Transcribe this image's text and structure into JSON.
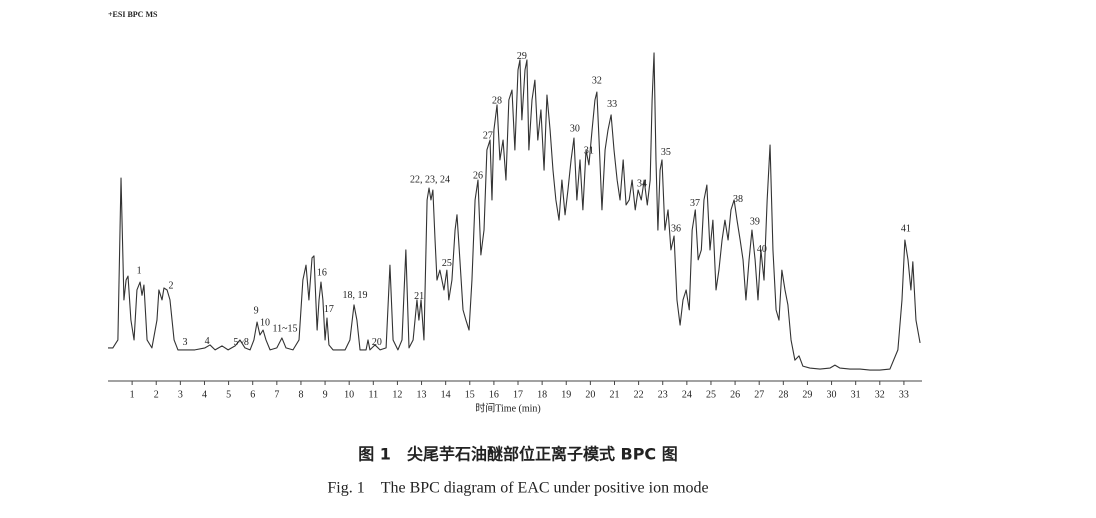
{
  "chart_data": {
    "type": "line",
    "label": "+ESI BPC MS",
    "xlabel": "时间Time (min)",
    "caption_cn": "图 1　尖尾芋石油醚部位正离子模式 BPC 图",
    "caption_en": "Fig. 1　The BPC diagram of EAC under positive ion mode",
    "xlim": [
      0,
      33.75
    ],
    "ylim": [
      0,
      100
    ],
    "xticks": [
      1,
      2,
      3,
      4,
      5,
      6,
      7,
      8,
      9,
      10,
      11,
      12,
      13,
      14,
      15,
      16,
      17,
      18,
      19,
      20,
      21,
      22,
      23,
      24,
      25,
      26,
      27,
      28,
      29,
      30,
      31,
      32,
      33
    ],
    "series": [
      {
        "color": "#333333",
        "x": [
          0,
          0.2,
          0.41,
          0.54,
          0.66,
          0.75,
          0.83,
          0.95,
          1.08,
          1.2,
          1.33,
          1.41,
          1.49,
          1.62,
          1.82,
          2.03,
          2.11,
          2.24,
          2.32,
          2.45,
          2.57,
          2.74,
          2.9,
          3.19,
          3.6,
          4.02,
          4.23,
          4.44,
          4.73,
          4.98,
          5.27,
          5.47,
          5.68,
          5.89,
          6.05,
          6.18,
          6.3,
          6.43,
          6.55,
          6.72,
          7.0,
          7.21,
          7.38,
          7.67,
          7.92,
          8.08,
          8.21,
          8.33,
          8.46,
          8.54,
          8.67,
          8.75,
          8.83,
          8.91,
          9.0,
          9.08,
          9.16,
          9.33,
          9.83,
          10.03,
          10.2,
          10.32,
          10.45,
          10.7,
          10.78,
          10.86,
          11.07,
          11.28,
          11.53,
          11.69,
          11.82,
          12.02,
          12.19,
          12.35,
          12.48,
          12.65,
          12.81,
          12.89,
          12.98,
          13.1,
          13.23,
          13.31,
          13.39,
          13.47,
          13.56,
          13.64,
          13.76,
          13.93,
          14.05,
          14.13,
          14.26,
          14.39,
          14.47,
          14.59,
          14.72,
          14.84,
          14.97,
          15.09,
          15.22,
          15.34,
          15.46,
          15.59,
          15.71,
          15.84,
          15.92,
          16.0,
          16.13,
          16.25,
          16.38,
          16.5,
          16.62,
          16.75,
          16.87,
          17.0,
          17.08,
          17.16,
          17.29,
          17.37,
          17.45,
          17.58,
          17.7,
          17.82,
          17.95,
          18.08,
          18.2,
          18.33,
          18.45,
          18.57,
          18.7,
          18.82,
          18.95,
          19.07,
          19.2,
          19.32,
          19.44,
          19.57,
          19.69,
          19.82,
          19.94,
          20.07,
          20.19,
          20.27,
          20.36,
          20.48,
          20.61,
          20.73,
          20.86,
          20.98,
          21.11,
          21.23,
          21.36,
          21.48,
          21.61,
          21.73,
          21.86,
          21.98,
          22.11,
          22.23,
          22.36,
          22.48,
          22.56,
          22.64,
          22.72,
          22.8,
          22.89,
          22.97,
          23.09,
          23.22,
          23.34,
          23.47,
          23.59,
          23.72,
          23.84,
          23.97,
          24.1,
          24.22,
          24.35,
          24.47,
          24.6,
          24.71,
          24.83,
          24.96,
          25.08,
          25.21,
          25.33,
          25.46,
          25.58,
          25.71,
          25.83,
          25.96,
          26.08,
          26.21,
          26.33,
          26.45,
          26.58,
          26.7,
          26.83,
          26.95,
          27.07,
          27.2,
          27.33,
          27.45,
          27.57,
          27.7,
          27.82,
          27.94,
          28.07,
          28.19,
          28.32,
          28.48,
          28.65,
          28.81,
          29.1,
          29.52,
          29.93,
          30.14,
          30.35,
          30.76,
          31.18,
          31.59,
          32.0,
          32.42,
          32.75,
          32.92,
          33.04,
          33.17,
          33.29,
          33.37,
          33.5,
          33.67
        ],
        "values": [
          10.0,
          10.0,
          12.4,
          61.3,
          24.5,
          30.5,
          31.7,
          18.4,
          12.4,
          27.5,
          29.9,
          25.9,
          29.0,
          12.4,
          10.0,
          18.4,
          27.5,
          24.5,
          28.1,
          27.5,
          24.5,
          12.4,
          9.4,
          9.4,
          9.4,
          10.0,
          10.9,
          9.4,
          10.6,
          9.4,
          10.6,
          12.4,
          10.0,
          9.4,
          12.4,
          17.8,
          13.9,
          15.4,
          12.4,
          9.4,
          10.0,
          13.0,
          10.0,
          9.4,
          12.4,
          30.5,
          35.0,
          24.5,
          37.2,
          37.8,
          15.4,
          24.5,
          29.9,
          24.5,
          12.4,
          19.0,
          10.9,
          9.4,
          9.4,
          12.4,
          23.0,
          18.4,
          9.4,
          9.4,
          12.4,
          9.4,
          10.9,
          9.4,
          10.0,
          35.0,
          12.4,
          9.4,
          12.4,
          39.6,
          10.0,
          12.4,
          24.5,
          18.4,
          24.5,
          12.4,
          54.7,
          58.3,
          54.7,
          57.7,
          42.6,
          30.5,
          33.5,
          27.5,
          33.5,
          24.5,
          30.5,
          45.6,
          50.2,
          36.6,
          21.5,
          18.4,
          15.4,
          30.5,
          54.7,
          60.7,
          38.1,
          45.6,
          69.8,
          72.8,
          54.7,
          75.8,
          83.4,
          66.8,
          72.8,
          60.7,
          84.9,
          87.9,
          69.8,
          94.0,
          97.0,
          78.9,
          94.0,
          97.0,
          69.8,
          84.9,
          90.9,
          72.8,
          81.9,
          63.7,
          86.4,
          75.8,
          63.7,
          54.7,
          48.6,
          60.7,
          50.2,
          57.7,
          66.8,
          73.4,
          54.7,
          66.8,
          51.7,
          69.8,
          65.3,
          75.8,
          84.9,
          87.3,
          72.8,
          51.7,
          69.8,
          75.8,
          80.4,
          69.8,
          60.7,
          54.7,
          66.8,
          53.2,
          54.7,
          60.7,
          51.7,
          57.7,
          54.7,
          60.7,
          53.2,
          60.7,
          84.9,
          99.1,
          66.8,
          45.6,
          63.7,
          66.8,
          45.6,
          51.7,
          39.6,
          43.8,
          24.5,
          16.9,
          24.5,
          27.5,
          21.5,
          45.6,
          51.7,
          36.6,
          39.6,
          54.7,
          59.2,
          39.6,
          48.6,
          27.5,
          33.5,
          42.6,
          48.6,
          42.6,
          51.7,
          54.7,
          48.6,
          42.6,
          36.6,
          24.5,
          36.6,
          45.6,
          36.6,
          24.5,
          39.6,
          30.5,
          54.7,
          71.3,
          39.6,
          21.5,
          18.4,
          33.5,
          27.5,
          23.0,
          12.4,
          6.3,
          7.6,
          4.5,
          3.9,
          3.6,
          3.9,
          4.8,
          3.9,
          3.6,
          3.6,
          3.3,
          3.3,
          3.6,
          9.4,
          24.5,
          42.6,
          36.6,
          27.5,
          36.0,
          18.4,
          11.5
        ]
      }
    ],
    "annotations": [
      {
        "text": "1",
        "x": 1.29,
        "y": 33.2
      },
      {
        "text": "2",
        "x": 2.61,
        "y": 28.7
      },
      {
        "text": "3",
        "x": 3.19,
        "y": 11.5
      },
      {
        "text": "4",
        "x": 4.11,
        "y": 11.8
      },
      {
        "text": "5~8",
        "x": 5.52,
        "y": 11.5
      },
      {
        "text": "9",
        "x": 6.14,
        "y": 21.1
      },
      {
        "text": "10",
        "x": 6.51,
        "y": 17.5
      },
      {
        "text": "11~15",
        "x": 7.34,
        "y": 15.7
      },
      {
        "text": "16",
        "x": 8.87,
        "y": 32.6
      },
      {
        "text": "17",
        "x": 9.16,
        "y": 21.5
      },
      {
        "text": "18, 19",
        "x": 10.24,
        "y": 25.7
      },
      {
        "text": "20",
        "x": 11.15,
        "y": 11.5
      },
      {
        "text": "21",
        "x": 12.9,
        "y": 25.4
      },
      {
        "text": "22, 23, 24",
        "x": 13.35,
        "y": 60.7
      },
      {
        "text": "25",
        "x": 14.05,
        "y": 35.4
      },
      {
        "text": "26",
        "x": 15.34,
        "y": 61.9
      },
      {
        "text": "27",
        "x": 15.75,
        "y": 74.0
      },
      {
        "text": "28",
        "x": 16.13,
        "y": 84.6
      },
      {
        "text": "29",
        "x": 17.16,
        "y": 97.9
      },
      {
        "text": "30",
        "x": 19.36,
        "y": 76.1
      },
      {
        "text": "31",
        "x": 19.94,
        "y": 69.5
      },
      {
        "text": "32",
        "x": 20.27,
        "y": 90.6
      },
      {
        "text": "33",
        "x": 20.9,
        "y": 83.4
      },
      {
        "text": "34",
        "x": 22.14,
        "y": 59.5
      },
      {
        "text": "35",
        "x": 23.13,
        "y": 68.9
      },
      {
        "text": "36",
        "x": 23.55,
        "y": 45.9
      },
      {
        "text": "37",
        "x": 24.34,
        "y": 53.5
      },
      {
        "text": "38",
        "x": 26.12,
        "y": 54.7
      },
      {
        "text": "39",
        "x": 26.82,
        "y": 48.0
      },
      {
        "text": "40",
        "x": 27.11,
        "y": 39.6
      },
      {
        "text": "41",
        "x": 33.08,
        "y": 45.9
      }
    ]
  }
}
